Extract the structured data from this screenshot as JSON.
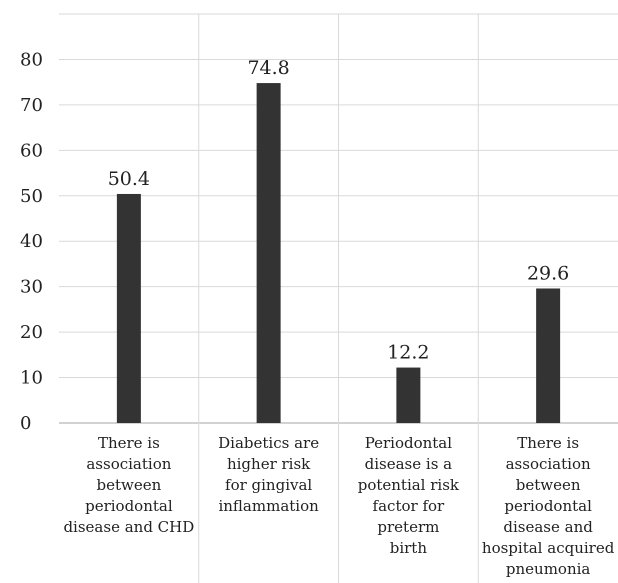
{
  "chart_data": {
    "type": "bar",
    "title": "",
    "xlabel": "",
    "ylabel": "",
    "categories": [
      "There is association between periodontal disease and CHD",
      "Diabetics are higher risk for gingival inflammation",
      "Periodontal disease is a potential risk factor for preterm birth",
      "There is association between periodontal disease and hospital acquired pneumonia"
    ],
    "category_lines": [
      [
        "There is",
        "association",
        "between",
        "periodontal",
        "disease and CHD"
      ],
      [
        "Diabetics are",
        "higher risk",
        "for gingival",
        "inflammation"
      ],
      [
        "Periodontal",
        "disease is a",
        "potential risk",
        "factor for preterm",
        "birth"
      ],
      [
        "There is",
        "association",
        "between",
        "periodontal",
        "disease and",
        "hospital acquired",
        "pneumonia"
      ]
    ],
    "values": [
      50.4,
      74.8,
      12.2,
      29.6
    ],
    "data_labels": [
      "50.4",
      "74.8",
      "12.2",
      "29.6"
    ],
    "yticks": [
      0,
      10,
      20,
      30,
      40,
      50,
      60,
      70,
      80
    ],
    "ylim": [
      0,
      90
    ],
    "grid": true,
    "legend": "none",
    "colors": {
      "bar": "#333333",
      "grid": "#d9d9d9",
      "axis": "#a6a6a6",
      "text": "#222222"
    }
  }
}
